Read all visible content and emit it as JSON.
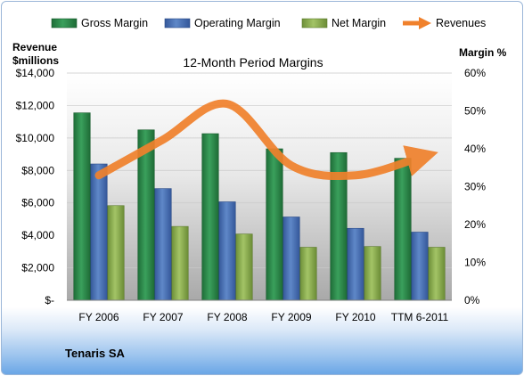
{
  "chart_data": {
    "type": "bar",
    "title": "12-Month Period Margins",
    "company": "Tenaris SA",
    "categories": [
      "FY 2006",
      "FY 2007",
      "FY 2008",
      "FY 2009",
      "FY 2010",
      "TTM 6-2011"
    ],
    "y_left": {
      "label_line1": "Revenue",
      "label_line2": "$millions",
      "range": [
        0,
        14000
      ],
      "ticks": [
        "$-",
        "$2,000",
        "$4,000",
        "$6,000",
        "$8,000",
        "$10,000",
        "$12,000",
        "$14,000"
      ]
    },
    "y_right": {
      "label": "Margin %",
      "range": [
        0,
        60
      ],
      "ticks": [
        "0%",
        "10%",
        "20%",
        "30%",
        "40%",
        "50%",
        "60%"
      ]
    },
    "legend": {
      "placement": "top",
      "entries": [
        "Gross Margin",
        "Operating Margin",
        "Net Margin",
        "Revenues"
      ]
    },
    "colors": {
      "gross": "#2a8a4a",
      "operating": "#4a74b8",
      "net": "#8cb050",
      "revenues": "#f0812c"
    },
    "series": [
      {
        "name": "Gross Margin",
        "axis": "right",
        "values": [
          49.5,
          45,
          44,
          40,
          39,
          37.5
        ]
      },
      {
        "name": "Operating Margin",
        "axis": "right",
        "values": [
          36,
          29.5,
          26,
          22,
          19,
          18
        ]
      },
      {
        "name": "Net Margin",
        "axis": "right",
        "values": [
          25,
          19.5,
          17.5,
          14,
          14.2,
          14
        ]
      },
      {
        "name": "Revenues",
        "axis": "left",
        "type": "line",
        "values": [
          7700,
          9900,
          12100,
          8300,
          7700,
          8800
        ]
      }
    ]
  }
}
